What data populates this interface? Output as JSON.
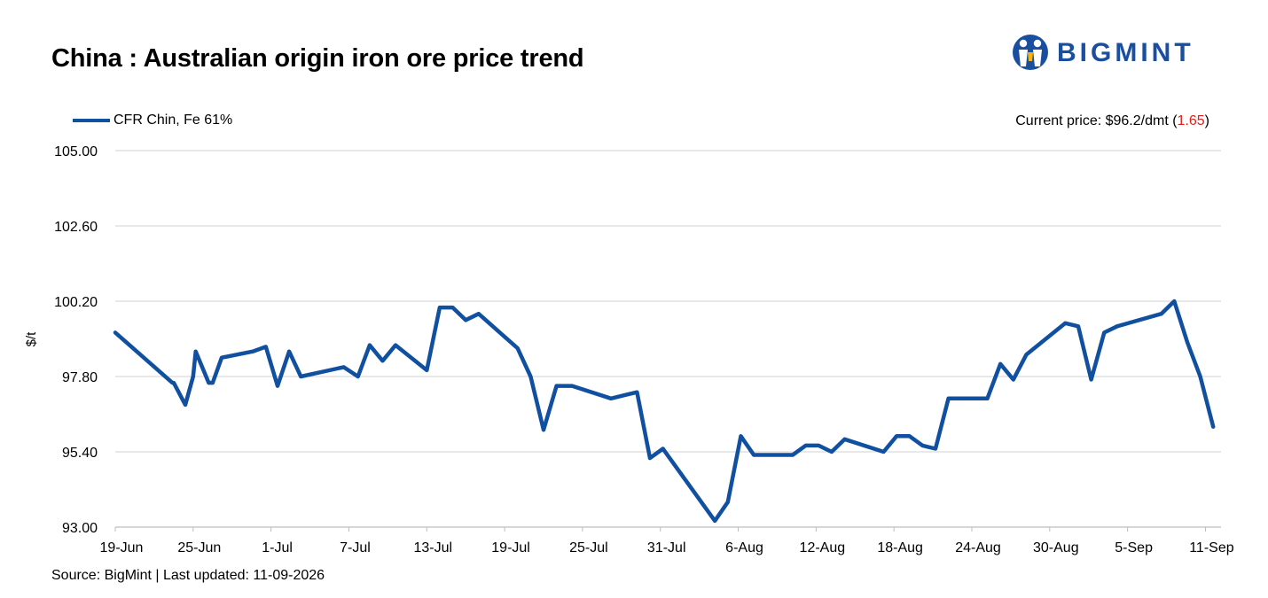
{
  "title": "China : Australian origin iron ore price trend",
  "brand": {
    "name": "BIGMINT",
    "icon": "people-logo-icon",
    "color": "#1a4fa0"
  },
  "current_price": {
    "prefix": "Current price: $96.2/dmt (",
    "change": "1.65",
    "suffix": ")",
    "change_color": "#e0201b"
  },
  "source": "Source: BigMint | Last updated: 11-09-2026",
  "chart_data": {
    "type": "line",
    "ylabel": "$/t",
    "ylim": [
      93.0,
      105.0
    ],
    "yticks": [
      "105.00",
      "102.60",
      "100.20",
      "97.80",
      "95.40",
      "93.00"
    ],
    "ytick_values": [
      105.0,
      102.6,
      100.2,
      97.8,
      95.4,
      93.0
    ],
    "xticks": [
      "19-Jun",
      "25-Jun",
      "1-Jul",
      "7-Jul",
      "13-Jul",
      "19-Jul",
      "25-Jul",
      "31-Jul",
      "6-Aug",
      "12-Aug",
      "18-Aug",
      "24-Aug",
      "30-Aug",
      "5-Sep",
      "11-Sep"
    ],
    "xtick_days": [
      0,
      6,
      12,
      18,
      24,
      30,
      36,
      42,
      48,
      54,
      60,
      66,
      72,
      78,
      84
    ],
    "grid": true,
    "legend_position": "top-left",
    "series": [
      {
        "name": "CFR Chin, Fe 61%",
        "color": "#1150a0",
        "points": [
          [
            0,
            99.2
          ],
          [
            4.4,
            97.6
          ],
          [
            4.5,
            97.6
          ],
          [
            5.4,
            96.9
          ],
          [
            6.0,
            97.8
          ],
          [
            6.2,
            98.6
          ],
          [
            7.2,
            97.6
          ],
          [
            7.5,
            97.6
          ],
          [
            8.2,
            98.4
          ],
          [
            10.6,
            98.6
          ],
          [
            11.6,
            98.75
          ],
          [
            12.5,
            97.5
          ],
          [
            13.4,
            98.6
          ],
          [
            14.3,
            97.8
          ],
          [
            17.6,
            98.1
          ],
          [
            18.7,
            97.8
          ],
          [
            19.6,
            98.8
          ],
          [
            20.6,
            98.3
          ],
          [
            21.6,
            98.8
          ],
          [
            24.0,
            98.0
          ],
          [
            25.0,
            100.0
          ],
          [
            26.0,
            100.0
          ],
          [
            27.0,
            99.6
          ],
          [
            28.0,
            99.8
          ],
          [
            31.0,
            98.7
          ],
          [
            32.0,
            97.8
          ],
          [
            33.0,
            96.1
          ],
          [
            34.0,
            97.5
          ],
          [
            35.2,
            97.5
          ],
          [
            38.2,
            97.1
          ],
          [
            39.2,
            97.2
          ],
          [
            40.2,
            97.3
          ],
          [
            41.2,
            95.2
          ],
          [
            42.2,
            95.5
          ],
          [
            46.2,
            93.2
          ],
          [
            47.2,
            93.8
          ],
          [
            48.2,
            95.9
          ],
          [
            49.2,
            95.3
          ],
          [
            52.2,
            95.3
          ],
          [
            53.2,
            95.6
          ],
          [
            54.2,
            95.6
          ],
          [
            55.2,
            95.4
          ],
          [
            56.2,
            95.8
          ],
          [
            59.2,
            95.4
          ],
          [
            60.2,
            95.9
          ],
          [
            61.2,
            95.9
          ],
          [
            62.2,
            95.6
          ],
          [
            63.2,
            95.5
          ],
          [
            64.2,
            97.1
          ],
          [
            66.2,
            97.1
          ],
          [
            67.2,
            97.1
          ],
          [
            68.2,
            98.2
          ],
          [
            69.2,
            97.7
          ],
          [
            70.2,
            98.5
          ],
          [
            73.2,
            99.5
          ],
          [
            74.2,
            99.4
          ],
          [
            75.2,
            97.7
          ],
          [
            76.2,
            99.2
          ],
          [
            77.2,
            99.4
          ],
          [
            80.6,
            99.8
          ],
          [
            81.6,
            100.2
          ],
          [
            82.6,
            98.9
          ],
          [
            83.6,
            97.8
          ],
          [
            84.6,
            96.2
          ]
        ]
      }
    ]
  }
}
